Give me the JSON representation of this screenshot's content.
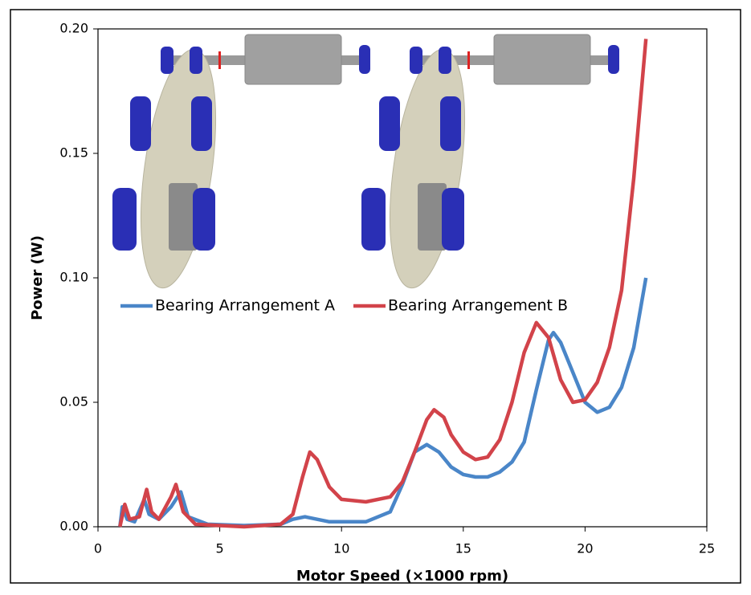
{
  "chart_data": {
    "type": "line",
    "xlabel": "Motor Speed (×1000 rpm)",
    "ylabel": "Power (W)",
    "xlim": [
      0,
      25
    ],
    "xticks": [
      0,
      5,
      10,
      15,
      20,
      25
    ],
    "ylim": [
      0,
      0.2
    ],
    "yticks": [
      {
        "value": 0,
        "label": "0.00"
      },
      0.05,
      {
        "value": 0.1,
        "label": "0.10"
      },
      0.15,
      {
        "value": 0.2,
        "label": "0.20"
      }
    ],
    "series": [
      {
        "name": "Bearing Arrangement A",
        "color": "#4a86c8",
        "x": [
          0.9,
          1.0,
          1.2,
          1.5,
          1.9,
          2.1,
          2.5,
          3.0,
          3.4,
          3.7,
          4.5,
          6,
          7.5,
          8,
          8.5,
          9.5,
          11,
          12,
          12.5,
          13,
          13.5,
          14,
          14.5,
          15,
          15.5,
          16,
          16.5,
          17,
          17.5,
          18,
          18.5,
          18.7,
          19,
          19.5,
          20,
          20.5,
          21,
          21.5,
          22,
          22.5
        ],
        "values": [
          0,
          0.008,
          0.003,
          0.002,
          0.011,
          0.005,
          0.003,
          0.008,
          0.014,
          0.004,
          0.001,
          0.0005,
          0.001,
          0.003,
          0.004,
          0.002,
          0.002,
          0.006,
          0.017,
          0.03,
          0.033,
          0.03,
          0.024,
          0.021,
          0.02,
          0.02,
          0.022,
          0.026,
          0.034,
          0.055,
          0.075,
          0.078,
          0.074,
          0.062,
          0.05,
          0.046,
          0.048,
          0.056,
          0.072,
          0.1
        ]
      },
      {
        "name": "Bearing Arrangement B",
        "color": "#d2434a",
        "x": [
          0.9,
          1.1,
          1.3,
          1.7,
          2.0,
          2.2,
          2.5,
          3.0,
          3.2,
          3.5,
          4,
          6,
          7.5,
          8.0,
          8.4,
          8.7,
          9.0,
          9.5,
          10,
          11,
          12,
          12.5,
          13,
          13.5,
          13.8,
          14.2,
          14.5,
          15,
          15.5,
          16,
          16.5,
          17,
          17.5,
          18,
          18.5,
          19,
          19.5,
          20,
          20.5,
          21,
          21.5,
          22,
          22.5
        ],
        "values": [
          0,
          0.009,
          0.003,
          0.004,
          0.015,
          0.006,
          0.003,
          0.012,
          0.017,
          0.006,
          0.001,
          0,
          0.001,
          0.005,
          0.02,
          0.03,
          0.027,
          0.016,
          0.011,
          0.01,
          0.012,
          0.018,
          0.03,
          0.043,
          0.047,
          0.044,
          0.037,
          0.03,
          0.027,
          0.028,
          0.035,
          0.05,
          0.07,
          0.082,
          0.076,
          0.059,
          0.05,
          0.051,
          0.058,
          0.072,
          0.095,
          0.14,
          0.196
        ]
      }
    ]
  }
}
